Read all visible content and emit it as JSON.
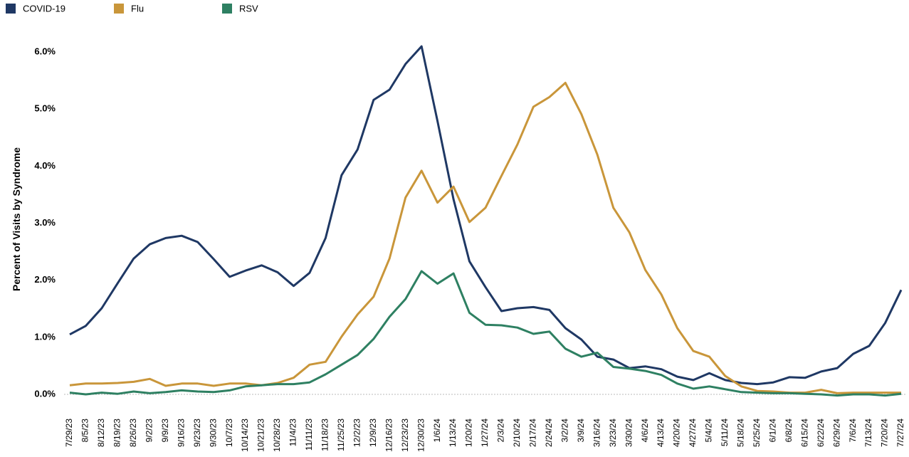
{
  "chart_data": {
    "type": "line",
    "y_label": "Percent of Visits by Syndrome",
    "x": [
      "7/29/23",
      "8/5/23",
      "8/12/23",
      "8/19/23",
      "8/26/23",
      "9/2/23",
      "9/9/23",
      "9/16/23",
      "9/23/23",
      "9/30/23",
      "10/7/23",
      "10/14/23",
      "10/21/23",
      "10/28/23",
      "11/4/23",
      "11/11/23",
      "11/18/23",
      "11/25/23",
      "12/2/23",
      "12/9/23",
      "12/16/23",
      "12/23/23",
      "12/30/23",
      "1/6/24",
      "1/13/24",
      "1/20/24",
      "1/27/24",
      "2/3/24",
      "2/10/24",
      "2/17/24",
      "2/24/24",
      "3/2/24",
      "3/9/24",
      "3/16/24",
      "3/23/24",
      "3/30/24",
      "4/6/24",
      "4/13/24",
      "4/20/24",
      "4/27/24",
      "5/4/24",
      "5/11/24",
      "5/18/24",
      "5/25/24",
      "6/1/24",
      "6/8/24",
      "6/15/24",
      "6/22/24",
      "6/29/24",
      "7/6/24",
      "7/13/24",
      "7/20/24",
      "7/27/24"
    ],
    "series": [
      {
        "name": "COVID-19",
        "color": "#1f3864",
        "values": [
          1.05,
          1.2,
          1.51,
          1.95,
          2.38,
          2.63,
          2.74,
          2.78,
          2.67,
          2.37,
          2.06,
          2.17,
          2.26,
          2.14,
          1.9,
          2.13,
          2.74,
          3.84,
          4.29,
          5.16,
          5.34,
          5.79,
          6.1,
          4.79,
          3.42,
          2.33,
          1.88,
          1.46,
          1.51,
          1.53,
          1.48,
          1.16,
          0.96,
          0.66,
          0.61,
          0.46,
          0.49,
          0.44,
          0.31,
          0.25,
          0.37,
          0.25,
          0.2,
          0.18,
          0.21,
          0.3,
          0.29,
          0.4,
          0.46,
          0.71,
          0.85,
          1.25,
          1.83
        ]
      },
      {
        "name": "Flu",
        "color": "#c9963a",
        "values": [
          0.16,
          0.19,
          0.19,
          0.2,
          0.22,
          0.27,
          0.15,
          0.19,
          0.19,
          0.15,
          0.19,
          0.19,
          0.16,
          0.2,
          0.29,
          0.52,
          0.57,
          1.01,
          1.4,
          1.71,
          2.38,
          3.45,
          3.92,
          3.36,
          3.64,
          3.02,
          3.27,
          3.83,
          4.38,
          5.04,
          5.21,
          5.46,
          4.91,
          4.2,
          3.27,
          2.84,
          2.18,
          1.75,
          1.16,
          0.76,
          0.66,
          0.32,
          0.14,
          0.06,
          0.05,
          0.03,
          0.03,
          0.08,
          0.02,
          0.03,
          0.03,
          0.03,
          0.03
        ]
      },
      {
        "name": "RSV",
        "color": "#2e8062",
        "values": [
          0.03,
          0.0,
          0.03,
          0.01,
          0.05,
          0.02,
          0.04,
          0.07,
          0.05,
          0.04,
          0.07,
          0.14,
          0.16,
          0.18,
          0.18,
          0.21,
          0.35,
          0.52,
          0.69,
          0.97,
          1.36,
          1.67,
          2.16,
          1.94,
          2.12,
          1.43,
          1.22,
          1.21,
          1.17,
          1.06,
          1.1,
          0.8,
          0.66,
          0.73,
          0.48,
          0.45,
          0.41,
          0.34,
          0.19,
          0.1,
          0.14,
          0.09,
          0.04,
          0.03,
          0.02,
          0.02,
          0.01,
          0.0,
          -0.02,
          0.0,
          0.0,
          -0.02,
          0.01
        ]
      }
    ],
    "ylim": [
      -0.1,
      6.5
    ],
    "yticks": [
      {
        "value": 0,
        "label": "0.0%"
      },
      {
        "value": 1,
        "label": "1.0%"
      },
      {
        "value": 2,
        "label": "2.0%"
      },
      {
        "value": 3,
        "label": "3.0%"
      },
      {
        "value": 4,
        "label": "4.0%"
      },
      {
        "value": 5,
        "label": "5.0%"
      },
      {
        "value": 6,
        "label": "6.0%"
      }
    ],
    "grid": false,
    "legend": "top-left"
  }
}
